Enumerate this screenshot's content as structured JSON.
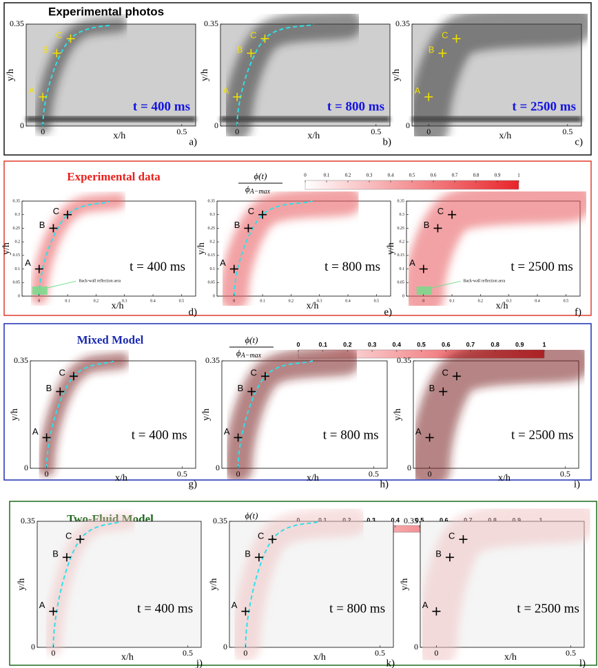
{
  "figure": {
    "x_label": "x/h",
    "y_label": "y/h",
    "xlim": [
      -0.06,
      0.55
    ],
    "ylim": [
      0,
      0.35
    ],
    "points": [
      {
        "label": "A",
        "x": 0,
        "y": 0.1
      },
      {
        "label": "B",
        "x": 0.05,
        "y": 0.25
      },
      {
        "label": "C",
        "x": 0.1,
        "y": 0.3
      }
    ],
    "colorbar_label": {
      "numerator": "ϕ(t)",
      "denominator": "ϕ",
      "denominator_subscript": "A−max"
    },
    "colorbar_ticks": [
      0,
      0.1,
      0.2,
      0.3,
      0.4,
      0.5,
      0.6,
      0.7,
      0.8,
      0.9,
      1
    ],
    "rows": [
      {
        "title": "Experimental photos",
        "colorbar": false,
        "xticks": [
          0,
          0.5
        ],
        "yticks": [
          0,
          0.35
        ],
        "panels": [
          {
            "time": "t = 400 ms",
            "letter": "a)"
          },
          {
            "time": "t = 800 ms",
            "letter": "b)"
          },
          {
            "time": "t = 2500 ms",
            "letter": "c)"
          }
        ]
      },
      {
        "title": "Experimental data",
        "colorbar": true,
        "xticks": [
          0,
          0.1,
          0.2,
          0.3,
          0.4,
          0.5
        ],
        "yticks": [
          0,
          0.05,
          0.1,
          0.15,
          0.2,
          0.25,
          0.3,
          0.35
        ],
        "panels": [
          {
            "time": "t = 400 ms",
            "letter": "d)",
            "annotation": "Back-wall reflection aera"
          },
          {
            "time": "t = 800 ms",
            "letter": "e)"
          },
          {
            "time": "t = 2500 ms",
            "letter": "f)",
            "annotation": "Back-wall reflection aera"
          }
        ]
      },
      {
        "title": "Mixed Model",
        "colorbar": true,
        "xticks": [
          0,
          0.5
        ],
        "yticks": [
          0,
          0.35
        ],
        "panels": [
          {
            "time": "t = 400 ms",
            "letter": "g)"
          },
          {
            "time": "t = 800 ms",
            "letter": "h)"
          },
          {
            "time": "t = 2500 ms",
            "letter": "i)"
          }
        ]
      },
      {
        "title": "Two-Fluid Model",
        "colorbar": true,
        "xticks": [
          0,
          0.5
        ],
        "yticks": [
          0,
          0.35
        ],
        "panels": [
          {
            "time": "t = 400 ms",
            "letter": "j)"
          },
          {
            "time": "t = 800 ms",
            "letter": "k)"
          },
          {
            "time": "t = 2500 ms",
            "letter": "l)"
          }
        ]
      }
    ]
  }
}
